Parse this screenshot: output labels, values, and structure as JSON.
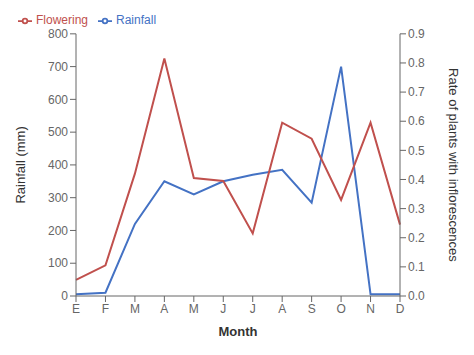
{
  "chart_data": {
    "type": "line",
    "categories": [
      "E",
      "F",
      "M",
      "A",
      "M",
      "J",
      "J",
      "A",
      "S",
      "O",
      "N",
      "D"
    ],
    "xlabel": "Month",
    "ylabel": "Rainfall (mm)",
    "y2label": "Rate of plants with inflorescences",
    "ylim": [
      0,
      800
    ],
    "yticks": [
      0,
      100,
      200,
      300,
      400,
      500,
      600,
      700,
      800
    ],
    "y2lim": [
      0,
      0.9
    ],
    "y2ticks": [
      {
        "value": 0,
        "label": "0.0"
      },
      0.1,
      0.2,
      0.3,
      0.4,
      0.5,
      0.6,
      0.7,
      0.8,
      0.9
    ],
    "legend": "upper left",
    "grid": false,
    "series": [
      {
        "name": "Rainfall",
        "color": "#4472C4",
        "axis": "y",
        "values": [
          5,
          10,
          220,
          350,
          310,
          350,
          370,
          385,
          285,
          700,
          5,
          5
        ]
      },
      {
        "name": "Flowering",
        "color": "#C0504D",
        "axis": "y2",
        "values": [
          0.055,
          0.105,
          0.42,
          0.815,
          0.405,
          0.395,
          0.215,
          0.595,
          0.54,
          0.33,
          0.595,
          0.245
        ]
      }
    ]
  }
}
